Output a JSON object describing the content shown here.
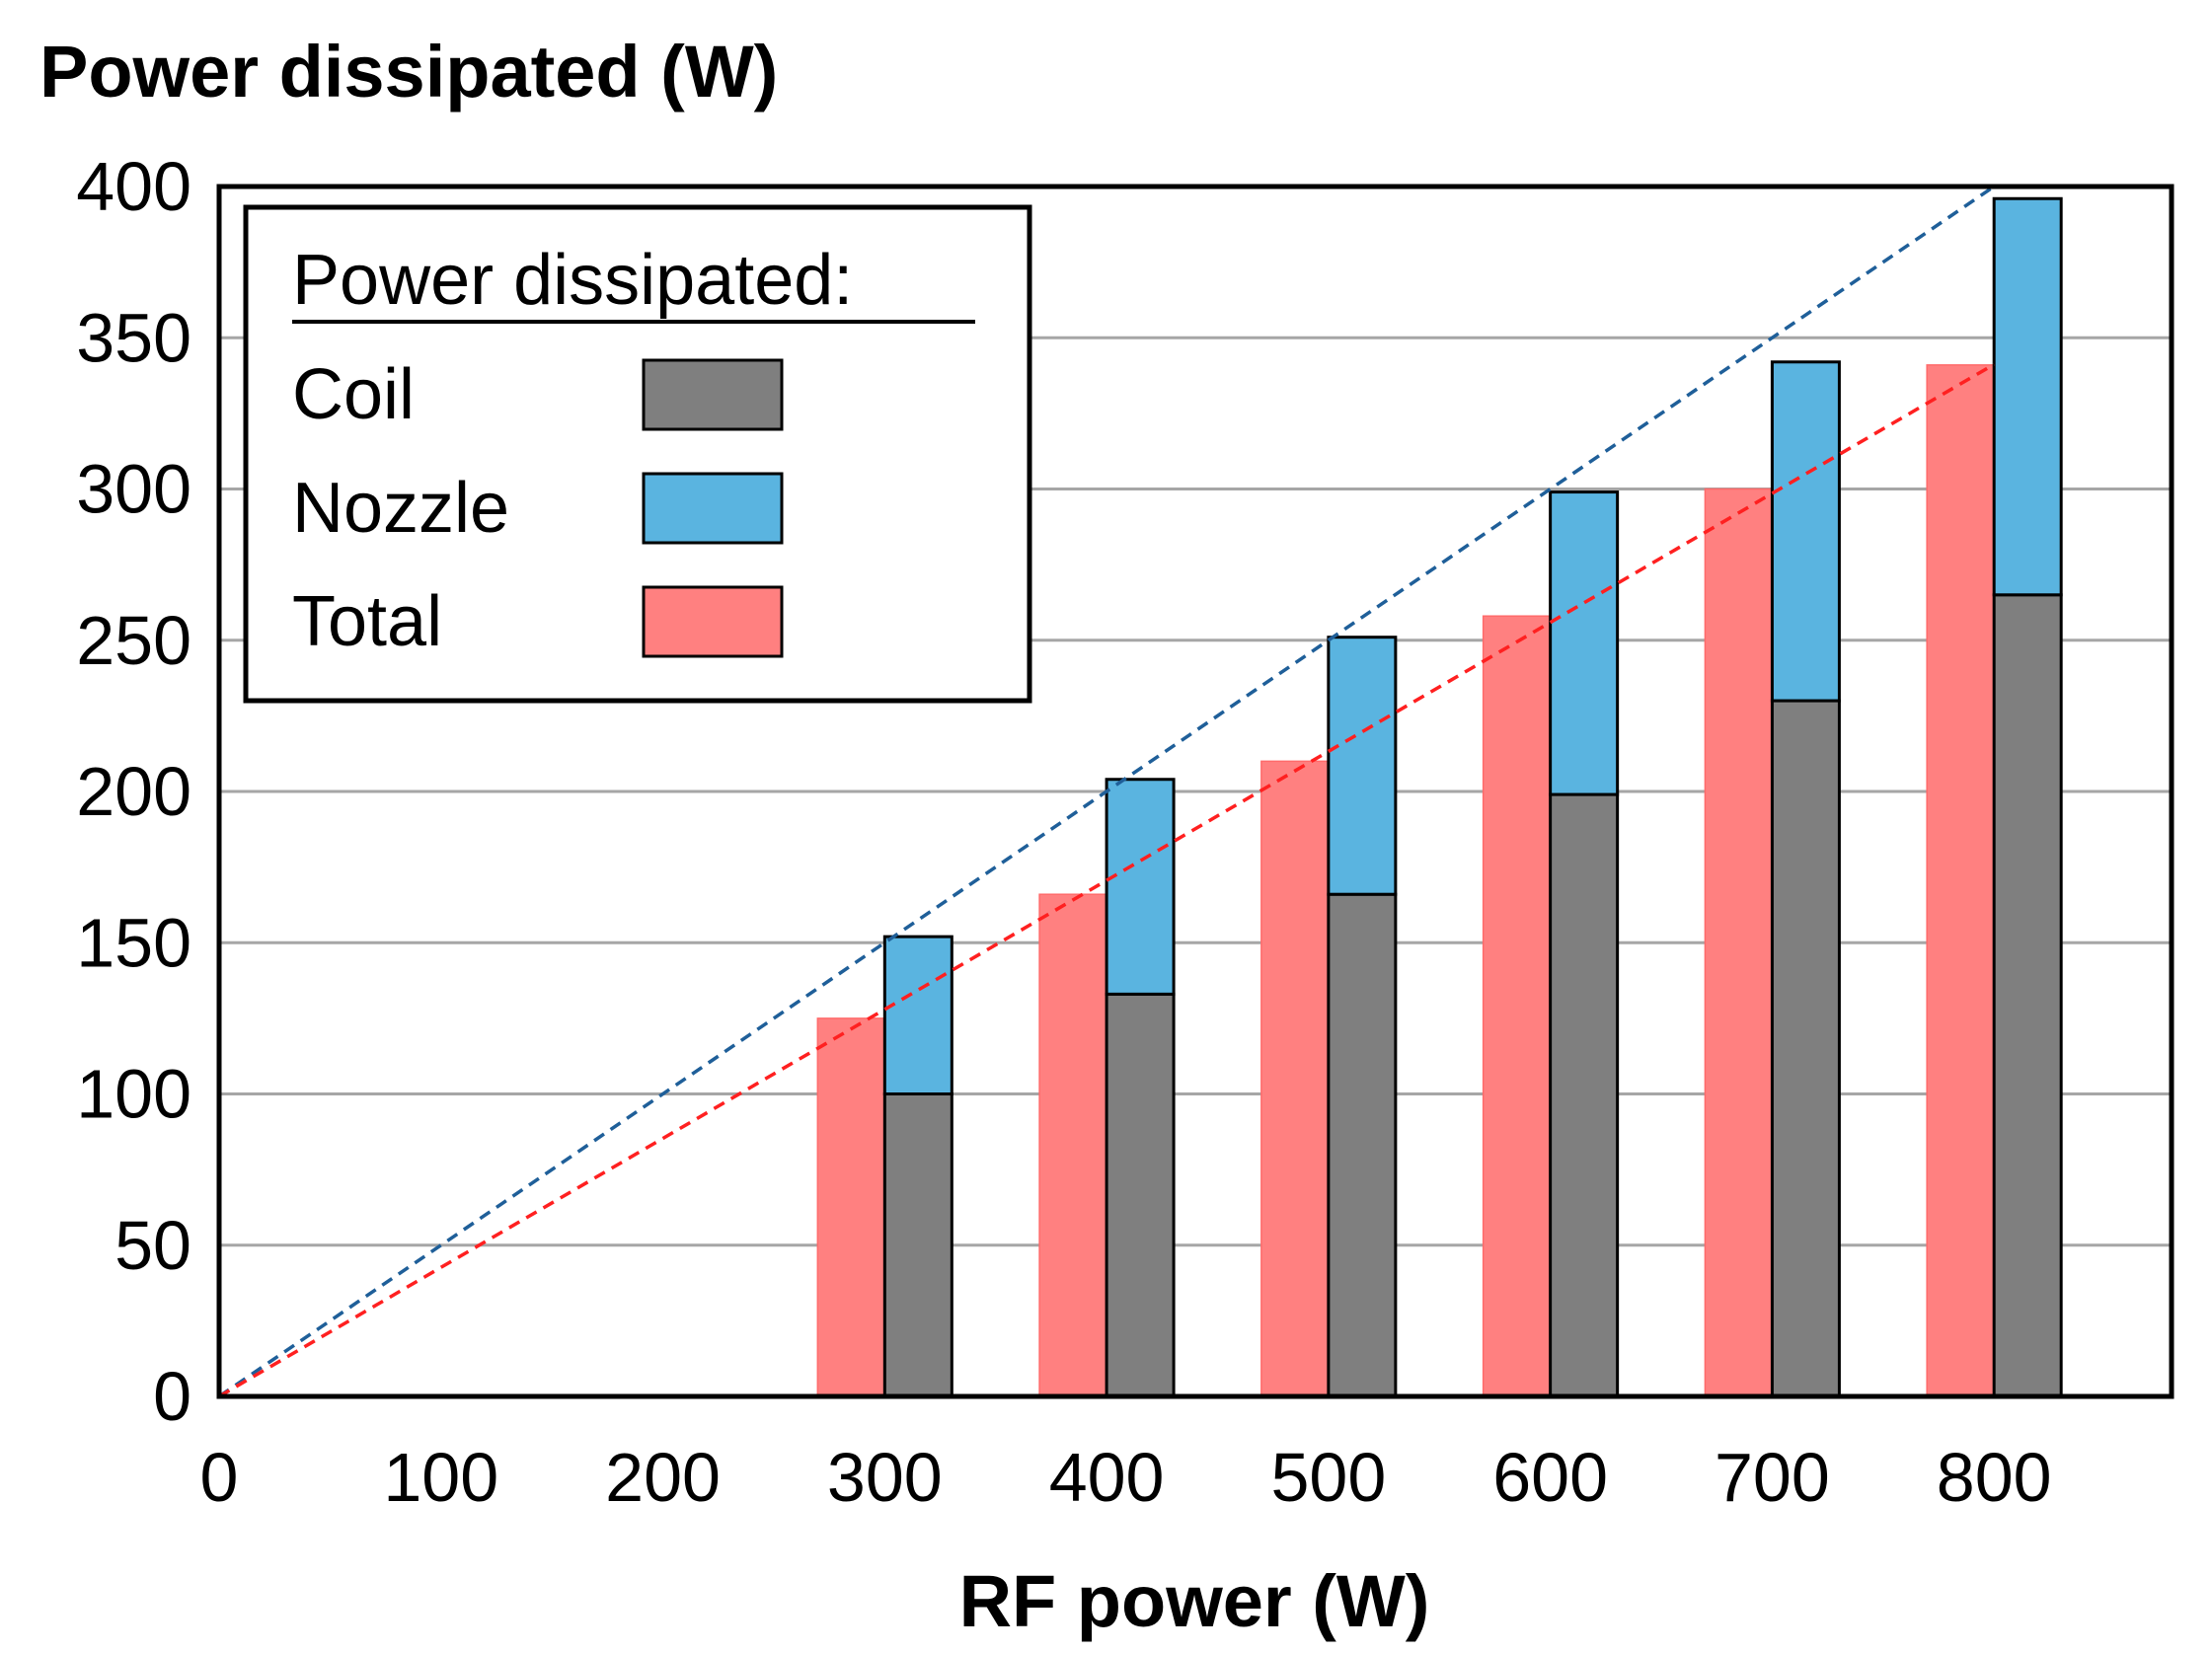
{
  "chart_data": {
    "type": "bar",
    "title": "Power dissipated (W)",
    "xlabel": "RF power (W)",
    "ylabel": "Power dissipated (W)",
    "xlim": [
      0,
      880
    ],
    "ylim": [
      0,
      400
    ],
    "x_ticks": [
      "0",
      "100",
      "200",
      "300",
      "400",
      "500",
      "600",
      "700",
      "800"
    ],
    "y_ticks": [
      "0",
      "50",
      "100",
      "150",
      "200",
      "250",
      "300",
      "350",
      "400"
    ],
    "grid": true,
    "categories": [
      300,
      400,
      500,
      600,
      700,
      800
    ],
    "series": [
      {
        "name": "Coil",
        "color": "#7f7f7f",
        "stack": "coil+nozzle",
        "values": [
          100,
          133,
          166,
          199,
          230,
          265
        ]
      },
      {
        "name": "Nozzle",
        "color": "#5ab4e0",
        "stack": "coil+nozzle",
        "values": [
          52,
          71,
          85,
          100,
          112,
          131
        ]
      },
      {
        "name": "Total",
        "color": "#ff8080",
        "values": [
          125,
          166,
          210,
          258,
          300,
          341
        ]
      }
    ],
    "reference_lines": [
      {
        "name": "blue dashed",
        "color": "#1f5f99",
        "slope": 0.5,
        "style": "dashed"
      },
      {
        "name": "red dashed",
        "color": "#ff2020",
        "slope": 0.4265,
        "style": "dashed"
      }
    ],
    "legend": {
      "title": "Power dissipated:",
      "entries": [
        "Coil",
        "Nozzle",
        "Total"
      ],
      "placement": "top-left"
    }
  }
}
